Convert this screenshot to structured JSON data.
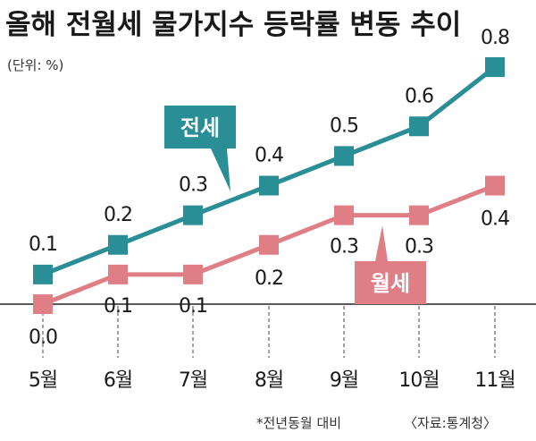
{
  "chart_data": {
    "type": "line",
    "title": "올해 전월세 물가지수 등락률 변동 추이",
    "unit_note": "(단위: %)",
    "categories": [
      "5월",
      "6월",
      "7월",
      "8월",
      "9월",
      "10월",
      "11월"
    ],
    "series": [
      {
        "name": "전세",
        "values": [
          0.1,
          0.2,
          0.3,
          0.4,
          0.5,
          0.6,
          0.8
        ],
        "labels": [
          "0.1",
          "0.2",
          "0.3",
          "0.4",
          "0.5",
          "0.6",
          "0.8"
        ],
        "color": "#2a8e97"
      },
      {
        "name": "월세",
        "values": [
          0.0,
          0.1,
          0.1,
          0.2,
          0.3,
          0.3,
          0.4
        ],
        "labels": [
          "0.0",
          "0.1",
          "0.1",
          "0.2",
          "0.3",
          "0.3",
          "0.4"
        ],
        "color": "#e07e86"
      }
    ],
    "ylim": [
      0,
      0.8
    ],
    "footnote": "*전년동월 대비",
    "source": "〈자료:통계청〉"
  }
}
